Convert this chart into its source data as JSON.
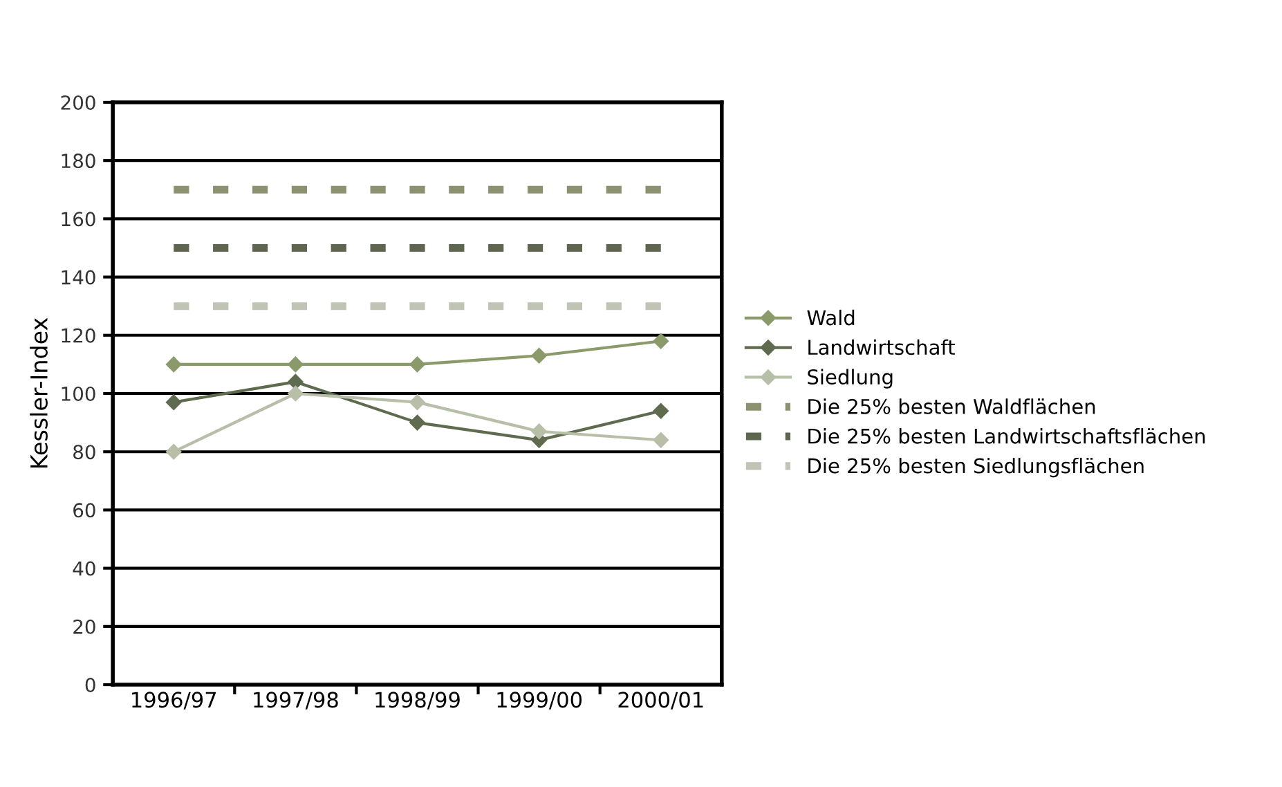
{
  "chart_data": {
    "type": "line",
    "ylabel": "Kessler-Index",
    "categories": [
      "1996/97",
      "1997/98",
      "1998/99",
      "1999/00",
      "2000/01"
    ],
    "series": [
      {
        "name": "Wald",
        "color": "#8a9a6a",
        "values": [
          110,
          110,
          110,
          113,
          118
        ],
        "marker": "diamond",
        "line_style": "solid"
      },
      {
        "name": "Landwirtschaft",
        "color": "#5f6b4e",
        "values": [
          97,
          104,
          90,
          84,
          94
        ],
        "marker": "diamond",
        "line_style": "solid"
      },
      {
        "name": "Siedlung",
        "color": "#b8bfa8",
        "values": [
          80,
          100,
          97,
          87,
          84
        ],
        "marker": "diamond",
        "line_style": "solid"
      },
      {
        "name": "Die 25% besten Waldflächen",
        "color": "#8c9170",
        "values": [
          170,
          170,
          170,
          170,
          170
        ],
        "marker": "none",
        "line_style": "dashed"
      },
      {
        "name": "Die 25% besten Landwirtschaftsflächen",
        "color": "#5f6650",
        "values": [
          150,
          150,
          150,
          150,
          150
        ],
        "marker": "none",
        "line_style": "dashed"
      },
      {
        "name": "Die 25% besten Siedlungsflächen",
        "color": "#c0c4b4",
        "values": [
          130,
          130,
          130,
          130,
          130
        ],
        "marker": "none",
        "line_style": "dashed"
      }
    ],
    "ylim": [
      0,
      200
    ],
    "yticks": [
      0,
      20,
      40,
      60,
      80,
      100,
      120,
      140,
      160,
      180,
      200
    ],
    "grid": "y",
    "legend": "right"
  }
}
